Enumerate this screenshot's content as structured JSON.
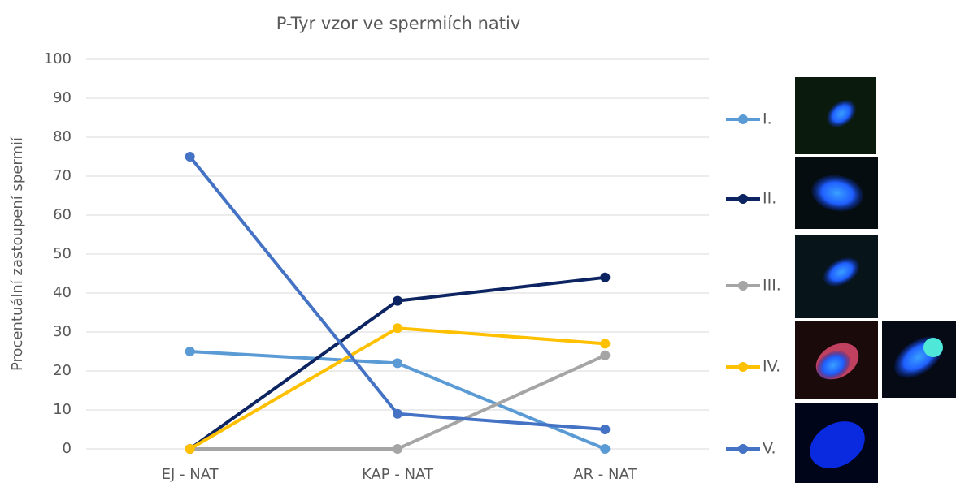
{
  "chart_data": {
    "type": "line",
    "title": "P-Tyr vzor ve spermiích nativ",
    "y_label": "Procentuální zastoupení spermií",
    "categories": [
      "EJ - NAT",
      "KAP - NAT",
      "AR - NAT"
    ],
    "series": [
      {
        "name": "I.",
        "color": "#5b9bd5",
        "values": [
          25,
          22,
          0
        ]
      },
      {
        "name": "II.",
        "color": "#0c2461",
        "values": [
          0,
          38,
          44
        ]
      },
      {
        "name": "III.",
        "color": "#a5a5a5",
        "values": [
          0,
          0,
          24
        ]
      },
      {
        "name": "IV.",
        "color": "#ffc000",
        "values": [
          0,
          31,
          27
        ]
      },
      {
        "name": "V.",
        "color": "#4472c4",
        "values": [
          75,
          9,
          5
        ]
      }
    ],
    "ylim": [
      0,
      100
    ],
    "yticks": [
      0,
      10,
      20,
      30,
      40,
      50,
      60,
      70,
      80,
      90,
      100
    ],
    "grid": true,
    "legend": "right"
  }
}
